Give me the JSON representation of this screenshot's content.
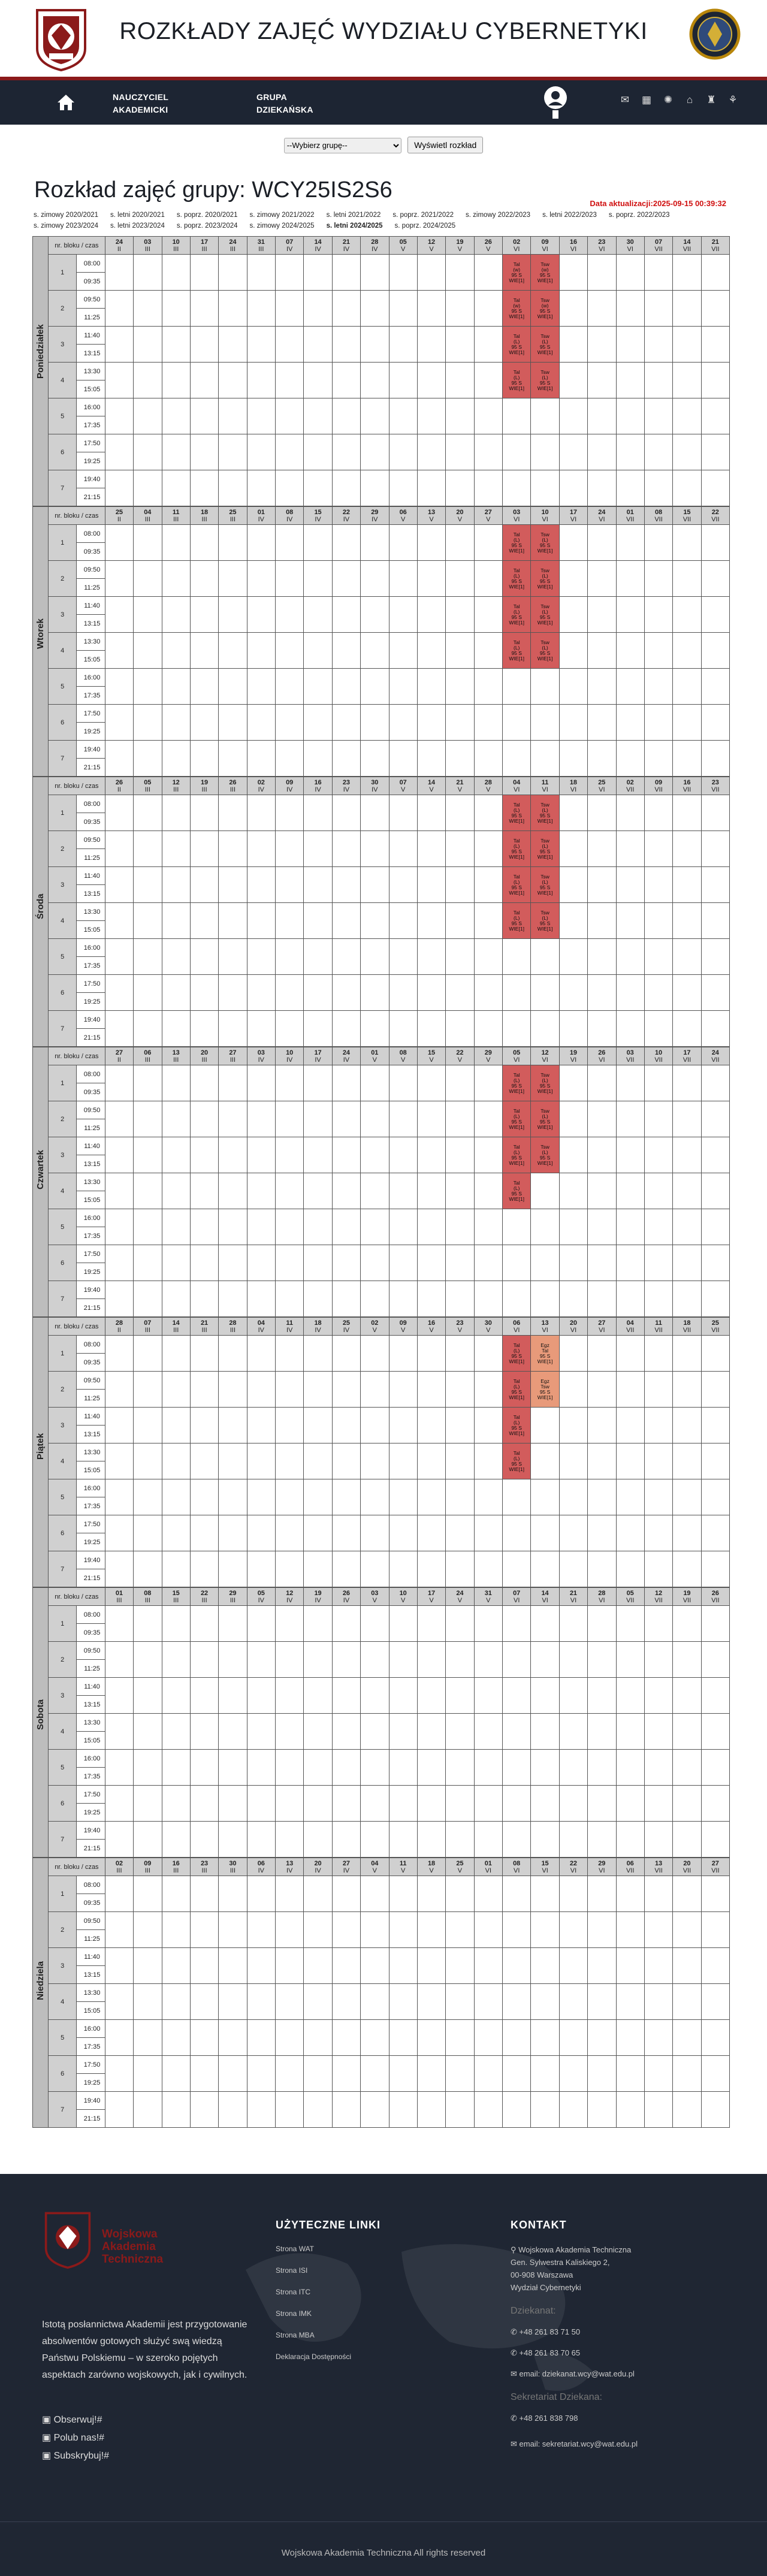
{
  "header": {
    "title": "ROZKŁADY ZAJĘĆ WYDZIAŁU CYBERNETYKI"
  },
  "nav": {
    "teachers": "NAUCZYCIEL AKADEMICKI",
    "group": "GRUPA DZIEKAŃSKA"
  },
  "picker": {
    "placeholder": "--Wybierz grupę--",
    "button": "Wyświetl rozkład"
  },
  "page": {
    "title": "Rozkład zajęć grupy: WCY25IS2S6",
    "updated": "Data aktualizacji:2025-09-15 00:39:32"
  },
  "semesters": [
    "s. zimowy 2020/2021",
    "s. letni 2020/2021",
    "s. poprz. 2020/2021",
    "s. zimowy 2021/2022",
    "s. letni 2021/2022",
    "s. poprz. 2021/2022",
    "s. zimowy 2022/2023",
    "s. letni 2022/2023",
    "s. poprz. 2022/2023",
    "s. zimowy 2023/2024",
    "s. letni 2023/2024",
    "s. poprz. 2023/2024",
    "s. zimowy 2024/2025",
    "s. letni 2024/2025",
    "s. poprz. 2024/2025"
  ],
  "current_semester_index": 13,
  "table": {
    "block_label": "nr. bloku / czas",
    "times": [
      [
        "08:00",
        "09:35"
      ],
      [
        "09:50",
        "11:25"
      ],
      [
        "11:40",
        "13:15"
      ],
      [
        "13:30",
        "15:05"
      ],
      [
        "16:00",
        "17:35"
      ],
      [
        "17:50",
        "19:25"
      ],
      [
        "19:40",
        "21:15"
      ]
    ],
    "days": [
      {
        "name": "Poniedziałek",
        "dates": [
          [
            "24",
            "II"
          ],
          [
            "03",
            "III"
          ],
          [
            "10",
            "III"
          ],
          [
            "17",
            "III"
          ],
          [
            "24",
            "III"
          ],
          [
            "31",
            "III"
          ],
          [
            "07",
            "IV"
          ],
          [
            "14",
            "IV"
          ],
          [
            "21",
            "IV"
          ],
          [
            "28",
            "IV"
          ],
          [
            "05",
            "V"
          ],
          [
            "12",
            "V"
          ],
          [
            "19",
            "V"
          ],
          [
            "26",
            "V"
          ],
          [
            "02",
            "VI"
          ],
          [
            "09",
            "VI"
          ],
          [
            "16",
            "VI"
          ],
          [
            "23",
            "VI"
          ],
          [
            "30",
            "VI"
          ],
          [
            "07",
            "VII"
          ],
          [
            "14",
            "VII"
          ],
          [
            "21",
            "VII"
          ]
        ],
        "lessons": [
          {
            "col": 14,
            "block": 0,
            "l1": "Tal",
            "l2": "(w)",
            "l3": "95 S",
            "l4": "WIE[1]"
          },
          {
            "col": 15,
            "block": 0,
            "l1": "Tsw",
            "l2": "(w)",
            "l3": "95 S",
            "l4": "WIE[1]"
          },
          {
            "col": 14,
            "block": 1,
            "l1": "Tal",
            "l2": "(w)",
            "l3": "95 S",
            "l4": "WIE[1]"
          },
          {
            "col": 15,
            "block": 1,
            "l1": "Tsw",
            "l2": "(w)",
            "l3": "95 S",
            "l4": "WIE[1]"
          },
          {
            "col": 14,
            "block": 2,
            "l1": "Tal",
            "l2": "(L)",
            "l3": "95 S",
            "l4": "WIE[1]"
          },
          {
            "col": 15,
            "block": 2,
            "l1": "Tsw",
            "l2": "(L)",
            "l3": "95 S",
            "l4": "WIE[1]"
          },
          {
            "col": 14,
            "block": 3,
            "l1": "Tal",
            "l2": "(L)",
            "l3": "95 S",
            "l4": "WIE[1]"
          },
          {
            "col": 15,
            "block": 3,
            "l1": "Tsw",
            "l2": "(L)",
            "l3": "95 S",
            "l4": "WIE[1]"
          }
        ]
      },
      {
        "name": "Wtorek",
        "dates": [
          [
            "25",
            "II"
          ],
          [
            "04",
            "III"
          ],
          [
            "11",
            "III"
          ],
          [
            "18",
            "III"
          ],
          [
            "25",
            "III"
          ],
          [
            "01",
            "IV"
          ],
          [
            "08",
            "IV"
          ],
          [
            "15",
            "IV"
          ],
          [
            "22",
            "IV"
          ],
          [
            "29",
            "IV"
          ],
          [
            "06",
            "V"
          ],
          [
            "13",
            "V"
          ],
          [
            "20",
            "V"
          ],
          [
            "27",
            "V"
          ],
          [
            "03",
            "VI"
          ],
          [
            "10",
            "VI"
          ],
          [
            "17",
            "VI"
          ],
          [
            "24",
            "VI"
          ],
          [
            "01",
            "VII"
          ],
          [
            "08",
            "VII"
          ],
          [
            "15",
            "VII"
          ],
          [
            "22",
            "VII"
          ]
        ],
        "lessons": [
          {
            "col": 14,
            "block": 0,
            "l1": "Tal",
            "l2": "(L)",
            "l3": "95 S",
            "l4": "WIE[1]"
          },
          {
            "col": 15,
            "block": 0,
            "l1": "Tsw",
            "l2": "(L)",
            "l3": "95 S",
            "l4": "WIE[1]"
          },
          {
            "col": 14,
            "block": 1,
            "l1": "Tal",
            "l2": "(L)",
            "l3": "95 S",
            "l4": "WIE[1]"
          },
          {
            "col": 15,
            "block": 1,
            "l1": "Tsw",
            "l2": "(L)",
            "l3": "95 S",
            "l4": "WIE[1]"
          },
          {
            "col": 14,
            "block": 2,
            "l1": "Tal",
            "l2": "(L)",
            "l3": "95 S",
            "l4": "WIE[1]"
          },
          {
            "col": 15,
            "block": 2,
            "l1": "Tsw",
            "l2": "(L)",
            "l3": "95 S",
            "l4": "WIE[1]"
          },
          {
            "col": 14,
            "block": 3,
            "l1": "Tal",
            "l2": "(L)",
            "l3": "95 S",
            "l4": "WIE[1]"
          },
          {
            "col": 15,
            "block": 3,
            "l1": "Tsw",
            "l2": "(L)",
            "l3": "95 S",
            "l4": "WIE[1]"
          }
        ]
      },
      {
        "name": "Środa",
        "dates": [
          [
            "26",
            "II"
          ],
          [
            "05",
            "III"
          ],
          [
            "12",
            "III"
          ],
          [
            "19",
            "III"
          ],
          [
            "26",
            "III"
          ],
          [
            "02",
            "IV"
          ],
          [
            "09",
            "IV"
          ],
          [
            "16",
            "IV"
          ],
          [
            "23",
            "IV"
          ],
          [
            "30",
            "IV"
          ],
          [
            "07",
            "V"
          ],
          [
            "14",
            "V"
          ],
          [
            "21",
            "V"
          ],
          [
            "28",
            "V"
          ],
          [
            "04",
            "VI"
          ],
          [
            "11",
            "VI"
          ],
          [
            "18",
            "VI"
          ],
          [
            "25",
            "VI"
          ],
          [
            "02",
            "VII"
          ],
          [
            "09",
            "VII"
          ],
          [
            "16",
            "VII"
          ],
          [
            "23",
            "VII"
          ]
        ],
        "lessons": [
          {
            "col": 14,
            "block": 0,
            "l1": "Tal",
            "l2": "(L)",
            "l3": "95 S",
            "l4": "WIE[1]"
          },
          {
            "col": 15,
            "block": 0,
            "l1": "Tsw",
            "l2": "(L)",
            "l3": "95 S",
            "l4": "WIE[1]"
          },
          {
            "col": 14,
            "block": 1,
            "l1": "Tal",
            "l2": "(L)",
            "l3": "95 S",
            "l4": "WIE[1]"
          },
          {
            "col": 15,
            "block": 1,
            "l1": "Tsw",
            "l2": "(L)",
            "l3": "95 S",
            "l4": "WIE[1]"
          },
          {
            "col": 14,
            "block": 2,
            "l1": "Tal",
            "l2": "(L)",
            "l3": "95 S",
            "l4": "WIE[1]"
          },
          {
            "col": 15,
            "block": 2,
            "l1": "Tsw",
            "l2": "(L)",
            "l3": "95 S",
            "l4": "WIE[1]"
          },
          {
            "col": 14,
            "block": 3,
            "l1": "Tal",
            "l2": "(L)",
            "l3": "95 S",
            "l4": "WIE[1]"
          },
          {
            "col": 15,
            "block": 3,
            "l1": "Tsw",
            "l2": "(L)",
            "l3": "95 S",
            "l4": "WIE[1]"
          }
        ]
      },
      {
        "name": "Czwartek",
        "dates": [
          [
            "27",
            "II"
          ],
          [
            "06",
            "III"
          ],
          [
            "13",
            "III"
          ],
          [
            "20",
            "III"
          ],
          [
            "27",
            "III"
          ],
          [
            "03",
            "IV"
          ],
          [
            "10",
            "IV"
          ],
          [
            "17",
            "IV"
          ],
          [
            "24",
            "IV"
          ],
          [
            "01",
            "V"
          ],
          [
            "08",
            "V"
          ],
          [
            "15",
            "V"
          ],
          [
            "22",
            "V"
          ],
          [
            "29",
            "V"
          ],
          [
            "05",
            "VI"
          ],
          [
            "12",
            "VI"
          ],
          [
            "19",
            "VI"
          ],
          [
            "26",
            "VI"
          ],
          [
            "03",
            "VII"
          ],
          [
            "10",
            "VII"
          ],
          [
            "17",
            "VII"
          ],
          [
            "24",
            "VII"
          ]
        ],
        "lessons": [
          {
            "col": 14,
            "block": 0,
            "l1": "Tal",
            "l2": "(L)",
            "l3": "95 S",
            "l4": "WIE[1]"
          },
          {
            "col": 15,
            "block": 0,
            "l1": "Tsw",
            "l2": "(L)",
            "l3": "95 S",
            "l4": "WIE[1]"
          },
          {
            "col": 14,
            "block": 1,
            "l1": "Tal",
            "l2": "(L)",
            "l3": "95 S",
            "l4": "WIE[1]"
          },
          {
            "col": 15,
            "block": 1,
            "l1": "Tsw",
            "l2": "(L)",
            "l3": "95 S",
            "l4": "WIE[1]"
          },
          {
            "col": 14,
            "block": 2,
            "l1": "Tal",
            "l2": "(L)",
            "l3": "95 S",
            "l4": "WIE[1]"
          },
          {
            "col": 15,
            "block": 2,
            "l1": "Tsw",
            "l2": "(L)",
            "l3": "95 S",
            "l4": "WIE[1]"
          },
          {
            "col": 14,
            "block": 3,
            "l1": "Tal",
            "l2": "(L)",
            "l3": "95 S",
            "l4": "WIE[1]"
          }
        ]
      },
      {
        "name": "Piątek",
        "dates": [
          [
            "28",
            "II"
          ],
          [
            "07",
            "III"
          ],
          [
            "14",
            "III"
          ],
          [
            "21",
            "III"
          ],
          [
            "28",
            "III"
          ],
          [
            "04",
            "IV"
          ],
          [
            "11",
            "IV"
          ],
          [
            "18",
            "IV"
          ],
          [
            "25",
            "IV"
          ],
          [
            "02",
            "V"
          ],
          [
            "09",
            "V"
          ],
          [
            "16",
            "V"
          ],
          [
            "23",
            "V"
          ],
          [
            "30",
            "V"
          ],
          [
            "06",
            "VI"
          ],
          [
            "13",
            "VI"
          ],
          [
            "20",
            "VI"
          ],
          [
            "27",
            "VI"
          ],
          [
            "04",
            "VII"
          ],
          [
            "11",
            "VII"
          ],
          [
            "18",
            "VII"
          ],
          [
            "25",
            "VII"
          ]
        ],
        "lessons": [
          {
            "col": 14,
            "block": 0,
            "l1": "Tal",
            "l2": "(L)",
            "l3": "95 S",
            "l4": "WIE[1]"
          },
          {
            "col": 15,
            "block": 0,
            "l1": "Egz",
            "l2": "Tal",
            "l3": "95 S",
            "l4": "WIE[1]",
            "alt": true
          },
          {
            "col": 14,
            "block": 1,
            "l1": "Tal",
            "l2": "(L)",
            "l3": "95 S",
            "l4": "WIE[1]"
          },
          {
            "col": 15,
            "block": 1,
            "l1": "Egz",
            "l2": "Tsw",
            "l3": "95 S",
            "l4": "WIE[1]",
            "alt": true
          },
          {
            "col": 14,
            "block": 2,
            "l1": "Tal",
            "l2": "(L)",
            "l3": "95 S",
            "l4": "WIE[1]"
          },
          {
            "col": 14,
            "block": 3,
            "l1": "Tal",
            "l2": "(L)",
            "l3": "95 S",
            "l4": "WIE[1]"
          }
        ]
      },
      {
        "name": "Sobota",
        "dates": [
          [
            "01",
            "III"
          ],
          [
            "08",
            "III"
          ],
          [
            "15",
            "III"
          ],
          [
            "22",
            "III"
          ],
          [
            "29",
            "III"
          ],
          [
            "05",
            "IV"
          ],
          [
            "12",
            "IV"
          ],
          [
            "19",
            "IV"
          ],
          [
            "26",
            "IV"
          ],
          [
            "03",
            "V"
          ],
          [
            "10",
            "V"
          ],
          [
            "17",
            "V"
          ],
          [
            "24",
            "V"
          ],
          [
            "31",
            "V"
          ],
          [
            "07",
            "VI"
          ],
          [
            "14",
            "VI"
          ],
          [
            "21",
            "VI"
          ],
          [
            "28",
            "VI"
          ],
          [
            "05",
            "VII"
          ],
          [
            "12",
            "VII"
          ],
          [
            "19",
            "VII"
          ],
          [
            "26",
            "VII"
          ]
        ],
        "lessons": []
      },
      {
        "name": "Niedziela",
        "dates": [
          [
            "02",
            "III"
          ],
          [
            "09",
            "III"
          ],
          [
            "16",
            "III"
          ],
          [
            "23",
            "III"
          ],
          [
            "30",
            "III"
          ],
          [
            "06",
            "IV"
          ],
          [
            "13",
            "IV"
          ],
          [
            "20",
            "IV"
          ],
          [
            "27",
            "IV"
          ],
          [
            "04",
            "V"
          ],
          [
            "11",
            "V"
          ],
          [
            "18",
            "V"
          ],
          [
            "25",
            "V"
          ],
          [
            "01",
            "VI"
          ],
          [
            "08",
            "VI"
          ],
          [
            "15",
            "VI"
          ],
          [
            "22",
            "VI"
          ],
          [
            "29",
            "VI"
          ],
          [
            "06",
            "VII"
          ],
          [
            "13",
            "VII"
          ],
          [
            "20",
            "VII"
          ],
          [
            "27",
            "VII"
          ]
        ],
        "lessons": []
      }
    ]
  },
  "footer": {
    "brand": [
      "Wojskowa",
      "Akademia",
      "Techniczna"
    ],
    "mission": "Istotą posłannictwa Akademii jest przygotowanie absolwentów gotowych służyć swą wiedzą Państwu Polskiemu – w szeroko pojętych aspektach zarówno wojskowych, jak i cywilnych.",
    "social": [
      "Obserwuj!#",
      "Polub nas!#",
      "Subskrybuj!#"
    ],
    "links_title": "UŻYTECZNE LINKI",
    "links": [
      "Strona WAT",
      "Strona ISI",
      "Strona ITC",
      "Strona IMK",
      "Strona MBA",
      "Deklaracja Dostępności"
    ],
    "contact_title": "KONTAKT",
    "address": [
      "Wojskowa Akademia Techniczna",
      "Gen. Sylwestra Kaliskiego 2,",
      "00-908 Warszawa",
      "Wydział Cybernetyki"
    ],
    "dean_label": "Dziekanat:",
    "dean_phones": [
      "+48 261 83 71 50",
      "+48 261 83 70 65"
    ],
    "dean_email": "email: dziekanat.wcy@wat.edu.pl",
    "secretary_label": "Sekretariat Dziekana:",
    "secretary_phone": "+48 261 838 798",
    "secretary_email": "email: sekretariat.wcy@wat.edu.pl",
    "copyright": "Wojskowa Akademia Techniczna All rights reserved"
  },
  "colors": {
    "accent": "#8b1a1a",
    "nav": "#1d2533",
    "lesson": "#d25c5c",
    "exam": "#e89a7a"
  }
}
